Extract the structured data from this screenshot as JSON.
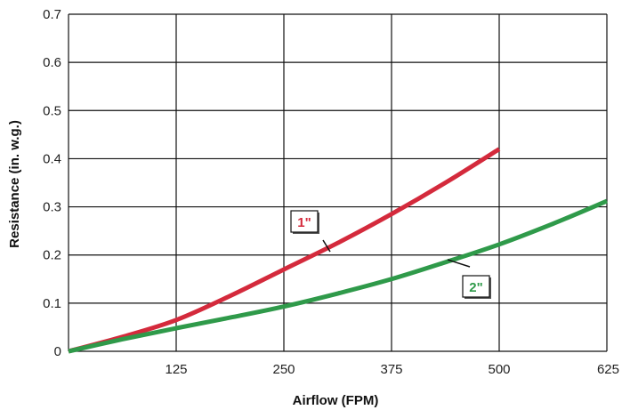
{
  "chart_data": {
    "type": "line",
    "xlabel": "Airflow (FPM)",
    "ylabel": "Resistance (in. w.g.)",
    "xlim": [
      0,
      625
    ],
    "ylim": [
      0,
      0.7
    ],
    "x_ticks": [
      "125",
      "250",
      "375",
      "500",
      "625"
    ],
    "y_ticks": [
      "0",
      "0.1",
      "0.2",
      "0.3",
      "0.4",
      "0.5",
      "0.6",
      "0.7"
    ],
    "grid": true,
    "series": [
      {
        "name": "1\"",
        "color": "#d42a3c",
        "x": [
          0,
          62.5,
          125,
          187.5,
          250,
          312.5,
          375,
          437.5,
          500
        ],
        "y": [
          0,
          0.03,
          0.065,
          0.115,
          0.17,
          0.225,
          0.285,
          0.35,
          0.42
        ]
      },
      {
        "name": "2\"",
        "color": "#2f9a4a",
        "x": [
          0,
          62.5,
          125,
          187.5,
          250,
          312.5,
          375,
          437.5,
          500,
          562.5,
          625
        ],
        "y": [
          0,
          0.025,
          0.048,
          0.07,
          0.093,
          0.12,
          0.15,
          0.185,
          0.222,
          0.265,
          0.312
        ]
      }
    ],
    "callouts": [
      {
        "text": "1\"",
        "color": "#d42a3c",
        "series": 0
      },
      {
        "text": "2\"",
        "color": "#2f9a4a",
        "series": 1
      }
    ]
  }
}
